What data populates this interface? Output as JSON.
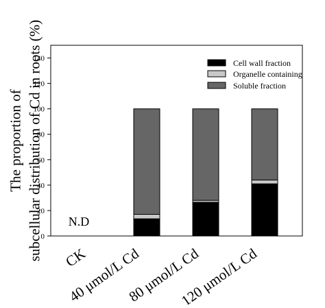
{
  "chart_data": {
    "type": "bar",
    "stacked": true,
    "categories": [
      "CK",
      "40 μmol/L Cd",
      "80 μmol/L Cd",
      "120 μmol/L Cd"
    ],
    "series": [
      {
        "name": "Cell wall fraction",
        "values": [
          null,
          13.5,
          26.5,
          41
        ],
        "color": "#000000"
      },
      {
        "name": "Organelle containing",
        "values": [
          null,
          3.5,
          1.5,
          3
        ],
        "color": "#c8c8c8"
      },
      {
        "name": "Soluble fraction",
        "values": [
          null,
          83,
          72,
          56
        ],
        "color": "#666666"
      }
    ],
    "ylabel_lines": [
      "The proportion of",
      "subcellular distribution of Cd in roots (%)"
    ],
    "ylim": [
      0,
      150
    ],
    "yticks": [
      0,
      20,
      40,
      60,
      80,
      100,
      120,
      140
    ],
    "legend": "top-right",
    "grid": false,
    "annotations": [
      {
        "category": "CK",
        "text": "N.D"
      }
    ]
  }
}
